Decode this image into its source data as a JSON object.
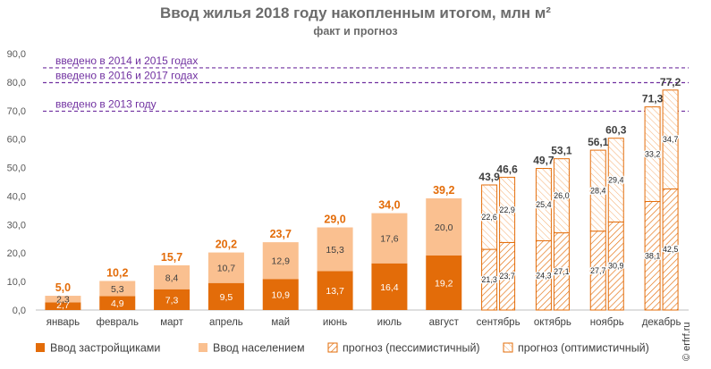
{
  "title": "Ввод жилья 2018 году накопленным итогом, млн м²",
  "subtitle": "факт и прогноз",
  "watermark": "© erfrf.ru",
  "colors": {
    "developers": "#e36c09",
    "population": "#fac090",
    "forecast": "#e36c09",
    "reference": "#7030a0",
    "axis_text": "#595959",
    "total_text": "#e36c09",
    "forecast_total_text": "#404040",
    "grid": "#d9d9d9"
  },
  "chart_data": {
    "type": "bar",
    "stacked": true,
    "categories": [
      "январь",
      "февраль",
      "март",
      "апрель",
      "май",
      "июнь",
      "июль",
      "август",
      "сентябрь",
      "октябрь",
      "ноябрь",
      "декабрь"
    ],
    "y_ticks": [
      "0,0",
      "10,0",
      "20,0",
      "30,0",
      "40,0",
      "50,0",
      "60,0",
      "70,0",
      "80,0",
      "90,0"
    ],
    "ylim": [
      0,
      90
    ],
    "grid": false,
    "legend_position": "bottom",
    "fact": {
      "categories": [
        "январь",
        "февраль",
        "март",
        "апрель",
        "май",
        "июнь",
        "июль",
        "август"
      ],
      "series": [
        {
          "name": "Ввод застройщиками",
          "values": [
            2.7,
            4.9,
            7.3,
            9.5,
            10.9,
            13.7,
            16.4,
            19.2
          ],
          "labels": [
            "2,7",
            "4,9",
            "7,3",
            "9,5",
            "10,9",
            "13,7",
            "16,4",
            "19,2"
          ]
        },
        {
          "name": "Ввод населением",
          "values": [
            2.3,
            5.3,
            8.4,
            10.7,
            12.9,
            15.3,
            17.6,
            20.0
          ],
          "labels": [
            "2,3",
            "5,3",
            "8,4",
            "10,7",
            "12,9",
            "15,3",
            "17,6",
            "20,0"
          ]
        }
      ],
      "totals": [
        5.0,
        10.2,
        15.7,
        20.2,
        23.7,
        29.0,
        34.0,
        39.2
      ],
      "total_labels": [
        "5,0",
        "10,2",
        "15,7",
        "20,2",
        "23,7",
        "29,0",
        "34,0",
        "39,2"
      ]
    },
    "forecast": {
      "categories": [
        "сентябрь",
        "октябрь",
        "ноябрь",
        "декабрь"
      ],
      "series": [
        {
          "name": "прогноз (пессимистичный)",
          "developers": [
            21.3,
            24.3,
            27.7,
            38.1
          ],
          "developers_labels": [
            "21,3",
            "24,3",
            "27,7",
            "38,1"
          ],
          "population": [
            22.6,
            25.4,
            28.4,
            33.2
          ],
          "population_labels": [
            "22,6",
            "25,4",
            "28,4",
            "33,2"
          ],
          "totals": [
            43.9,
            49.7,
            56.1,
            71.3
          ],
          "total_labels": [
            "43,9",
            "49,7",
            "56,1",
            "71,3"
          ]
        },
        {
          "name": "прогноз (оптимистичный)",
          "developers": [
            23.7,
            27.1,
            30.9,
            42.5
          ],
          "developers_labels": [
            "23,7",
            "27,1",
            "30,9",
            "42,5"
          ],
          "population": [
            22.9,
            26.0,
            29.4,
            34.7
          ],
          "population_labels": [
            "22,9",
            "26,0",
            "29,4",
            "34,7"
          ],
          "totals": [
            46.6,
            53.1,
            60.3,
            77.2
          ],
          "total_labels": [
            "46,6",
            "53,1",
            "60,3",
            "77,2"
          ]
        }
      ]
    },
    "reference_lines": [
      {
        "label": "введено в 2014 и 2015 годах",
        "value": 85.0
      },
      {
        "label": "введено в 2016 и 2017 годах",
        "value": 79.8
      },
      {
        "label": "введено в 2013 году",
        "value": 69.8
      }
    ],
    "legend": [
      "Ввод застройщиками",
      "Ввод населением",
      "прогноз (пессимистичный)",
      "прогноз (оптимистичный)"
    ]
  }
}
